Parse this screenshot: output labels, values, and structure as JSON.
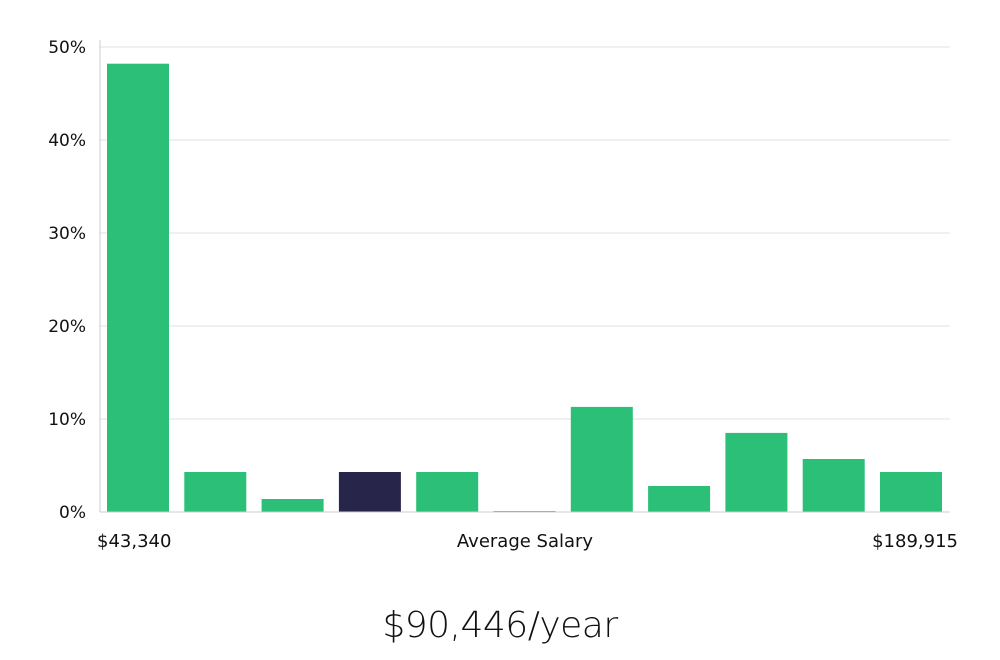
{
  "chart_data": {
    "type": "bar",
    "xlabel": "Average Salary",
    "x_range_labels": {
      "min": "$43,340",
      "max": "$189,915"
    },
    "ylim": [
      0,
      50
    ],
    "y_ticks": [
      0,
      10,
      20,
      30,
      40,
      50
    ],
    "y_tick_suffix": "%",
    "grid": true,
    "values": [
      48.2,
      4.3,
      1.4,
      4.3,
      4.3,
      0.1,
      11.3,
      2.8,
      8.5,
      5.7,
      4.3
    ],
    "highlight_index": 3,
    "colors": {
      "bar": "#2bbf77",
      "highlight": "#28254a",
      "grid": "#e2e2e2",
      "axis": "#cccccc"
    }
  },
  "salary": {
    "headline": "$90,446/year"
  }
}
